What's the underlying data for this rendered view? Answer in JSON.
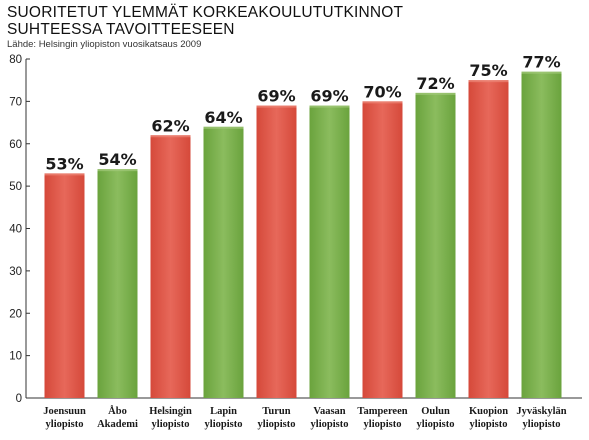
{
  "header": {
    "title_line1": "SUORITETUT YLEMMÄT KORKEAKOULUTUTKINNOT",
    "title_line2": "SUHTEESSA TAVOITTEESEEN",
    "source": "Lähde: Helsingin yliopiston vuosikatsaus 2009"
  },
  "colors": {
    "red": "#d94a3a",
    "red_light": "#ec8878",
    "green": "#6ea83f",
    "green_light": "#a3c97a",
    "axis": "#333333"
  },
  "chart_data": {
    "type": "bar",
    "title": "SUORITETUT YLEMMÄT KORKEAKOULUTUTKINNOT SUHTEESSA TAVOITTEESEEN",
    "ylim": [
      0,
      80
    ],
    "yticks": [
      0,
      10,
      20,
      30,
      40,
      50,
      60,
      70,
      80
    ],
    "grid": false,
    "categories": [
      [
        "Joensuun",
        "yliopisto"
      ],
      [
        "Åbo",
        "Akademi"
      ],
      [
        "Helsingin",
        "yliopisto"
      ],
      [
        "Lapin",
        "yliopisto"
      ],
      [
        "Turun",
        "yliopisto"
      ],
      [
        "Vaasan",
        "yliopisto"
      ],
      [
        "Tampereen",
        "yliopisto"
      ],
      [
        "Oulun",
        "yliopisto"
      ],
      [
        "Kuopion",
        "yliopisto"
      ],
      [
        "Jyväskylän",
        "yliopisto"
      ]
    ],
    "values": [
      53,
      54,
      62,
      64,
      69,
      69,
      70,
      72,
      75,
      77
    ],
    "value_labels": [
      "53%",
      "54%",
      "62%",
      "64%",
      "69%",
      "69%",
      "70%",
      "72%",
      "75%",
      "77%"
    ],
    "bar_colors": [
      "red",
      "green",
      "red",
      "green",
      "red",
      "green",
      "red",
      "green",
      "red",
      "green"
    ]
  }
}
